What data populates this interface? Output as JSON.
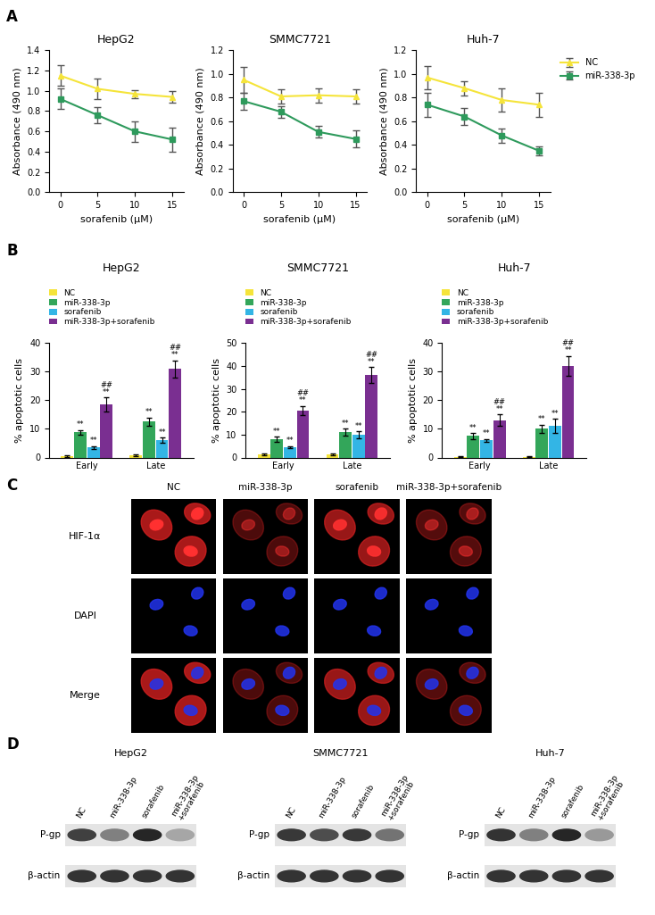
{
  "panel_labels": [
    "A",
    "B",
    "C",
    "D"
  ],
  "chart_data": [
    {
      "type": "line",
      "title": "HepG2",
      "x_label": "sorafenib (μM)",
      "y_label": "Absorbance (490 nm)",
      "x": [
        0,
        5,
        10,
        15
      ],
      "xlim": [
        -1.5,
        16.5
      ],
      "xticks": [
        0,
        5,
        10,
        15
      ],
      "ylim": [
        0,
        1.4
      ],
      "yticks": [
        {
          "value": 0,
          "label": "0.0"
        },
        {
          "value": 0.2,
          "label": "0.2"
        },
        {
          "value": 0.4,
          "label": "0.4"
        },
        {
          "value": 0.6,
          "label": "0.6"
        },
        {
          "value": 0.8,
          "label": "0.8"
        },
        {
          "value": 1.0,
          "label": "1.0"
        },
        {
          "value": 1.2,
          "label": "1.2"
        },
        {
          "value": 1.4,
          "label": "1.4"
        }
      ],
      "series": [
        {
          "color": "#f5e43a",
          "marker": "triangle",
          "values": [
            1.15,
            1.02,
            0.97,
            0.94
          ],
          "errors": [
            0.1,
            0.1,
            0.04,
            0.06
          ]
        },
        {
          "color": "#2e9a5c",
          "marker": "square",
          "values": [
            0.92,
            0.76,
            0.6,
            0.52
          ],
          "errors": [
            0.1,
            0.08,
            0.1,
            0.12
          ]
        }
      ]
    },
    {
      "type": "line",
      "title": "SMMC7721",
      "x_label": "sorafenib (μM)",
      "y_label": "Absorbance (490 nm)",
      "x": [
        0,
        5,
        10,
        15
      ],
      "xlim": [
        -1.5,
        16.5
      ],
      "xticks": [
        0,
        5,
        10,
        15
      ],
      "ylim": [
        0,
        1.2
      ],
      "yticks": [
        {
          "value": 0,
          "label": "0.0"
        },
        {
          "value": 0.2,
          "label": "0.2"
        },
        {
          "value": 0.4,
          "label": "0.4"
        },
        {
          "value": 0.6,
          "label": "0.6"
        },
        {
          "value": 0.8,
          "label": "0.8"
        },
        {
          "value": 1.0,
          "label": "1.0"
        },
        {
          "value": 1.2,
          "label": "1.2"
        }
      ],
      "series": [
        {
          "color": "#f5e43a",
          "marker": "triangle",
          "values": [
            0.95,
            0.81,
            0.82,
            0.81
          ],
          "errors": [
            0.11,
            0.06,
            0.06,
            0.06
          ]
        },
        {
          "color": "#2e9a5c",
          "marker": "square",
          "values": [
            0.77,
            0.68,
            0.51,
            0.45
          ],
          "errors": [
            0.07,
            0.05,
            0.05,
            0.07
          ]
        }
      ]
    },
    {
      "type": "line",
      "title": "Huh-7",
      "x_label": "sorafenib (μM)",
      "y_label": "Absorbance (490 nm)",
      "x": [
        0,
        5,
        10,
        15
      ],
      "xlim": [
        -1.5,
        16.5
      ],
      "xticks": [
        0,
        5,
        10,
        15
      ],
      "ylim": [
        0,
        1.2
      ],
      "yticks": [
        {
          "value": 0,
          "label": "0.0"
        },
        {
          "value": 0.2,
          "label": "0.2"
        },
        {
          "value": 0.4,
          "label": "0.4"
        },
        {
          "value": 0.6,
          "label": "0.6"
        },
        {
          "value": 0.8,
          "label": "0.8"
        },
        {
          "value": 1.0,
          "label": "1.0"
        },
        {
          "value": 1.2,
          "label": "1.2"
        }
      ],
      "legend": "right",
      "series": [
        {
          "name": "NC",
          "color": "#f5e43a",
          "marker": "triangle",
          "values": [
            0.97,
            0.88,
            0.78,
            0.74
          ],
          "errors": [
            0.1,
            0.06,
            0.1,
            0.1
          ]
        },
        {
          "name": "miR-338-3p",
          "color": "#2e9a5c",
          "marker": "square",
          "values": [
            0.74,
            0.64,
            0.48,
            0.35
          ],
          "errors": [
            0.1,
            0.07,
            0.06,
            0.04
          ]
        }
      ]
    },
    {
      "type": "bar",
      "title": "HepG2",
      "y_label": "% apoptotic cells",
      "categories": [
        "Early",
        "Late"
      ],
      "ylim": [
        0,
        40
      ],
      "yticks": [
        0,
        10,
        20,
        30,
        40
      ],
      "legend": "top",
      "series": [
        {
          "name": "NC",
          "color": "#f5e43a",
          "values": [
            0.5,
            0.8
          ],
          "errors": [
            0.2,
            0.2
          ]
        },
        {
          "name": "miR-338-3p",
          "color": "#33a65a",
          "values": [
            8.8,
            12.5
          ],
          "errors": [
            0.8,
            1.5
          ],
          "annotations": [
            [
              "**"
            ],
            [
              "**"
            ]
          ]
        },
        {
          "name": "sorafenib",
          "color": "#33b5e5",
          "values": [
            3.5,
            6
          ],
          "errors": [
            0.5,
            1
          ],
          "annotations": [
            [
              "**"
            ],
            [
              "**"
            ]
          ]
        },
        {
          "name": "miR-338-3p+sorafenib",
          "color": "#7a2f91",
          "values": [
            18.5,
            31
          ],
          "errors": [
            2.5,
            3
          ],
          "annotations": [
            [
              "##",
              "**"
            ],
            [
              "##",
              "**"
            ]
          ]
        }
      ]
    },
    {
      "type": "bar",
      "title": "SMMC7721",
      "y_label": "% apoptotic cells",
      "categories": [
        "Early",
        "Late"
      ],
      "ylim": [
        0,
        50
      ],
      "yticks": [
        0,
        10,
        20,
        30,
        40,
        50
      ],
      "legend": "top",
      "series": [
        {
          "name": "NC",
          "color": "#f5e43a",
          "values": [
            1.5,
            1.5
          ],
          "errors": [
            0.4,
            0.4
          ]
        },
        {
          "name": "miR-338-3p",
          "color": "#33a65a",
          "values": [
            8,
            11
          ],
          "errors": [
            1,
            1.5
          ],
          "annotations": [
            [
              "**"
            ],
            [
              "**"
            ]
          ]
        },
        {
          "name": "sorafenib",
          "color": "#33b5e5",
          "values": [
            4.5,
            10
          ],
          "errors": [
            0.5,
            1.5
          ],
          "annotations": [
            [
              "**"
            ],
            [
              "**"
            ]
          ]
        },
        {
          "name": "miR-338-3p+sorafenib",
          "color": "#7a2f91",
          "values": [
            20.5,
            36
          ],
          "errors": [
            2,
            3.5
          ],
          "annotations": [
            [
              "##",
              "**"
            ],
            [
              "##",
              "**"
            ]
          ]
        }
      ]
    },
    {
      "type": "bar",
      "title": "Huh-7",
      "y_label": "% apoptotic cells",
      "categories": [
        "Early",
        "Late"
      ],
      "ylim": [
        0,
        40
      ],
      "yticks": [
        0,
        10,
        20,
        30,
        40
      ],
      "legend": "top",
      "series": [
        {
          "name": "NC",
          "color": "#f5e43a",
          "values": [
            0.3,
            0.3
          ],
          "errors": [
            0.2,
            0.2
          ]
        },
        {
          "name": "miR-338-3p",
          "color": "#33a65a",
          "values": [
            7.5,
            10
          ],
          "errors": [
            1,
            1.5
          ],
          "annotations": [
            [
              "**"
            ],
            [
              "**"
            ]
          ]
        },
        {
          "name": "sorafenib",
          "color": "#33b5e5",
          "values": [
            6,
            11
          ],
          "errors": [
            0.5,
            2.5
          ],
          "annotations": [
            [
              "**"
            ],
            [
              "**"
            ]
          ]
        },
        {
          "name": "miR-338-3p+sorafenib",
          "color": "#7a2f91",
          "values": [
            13,
            32
          ],
          "errors": [
            2,
            3.5
          ],
          "annotations": [
            [
              "##",
              "**"
            ],
            [
              "##",
              "**"
            ]
          ]
        }
      ]
    }
  ],
  "immunofluorescence": {
    "columns": [
      "NC",
      "miR-338-3p",
      "sorafenib",
      "miR-338-3p+sorafenib"
    ],
    "rows": [
      "HIF-1α",
      "DAPI",
      "Merge"
    ]
  },
  "western_blot": {
    "panels": [
      "HepG2",
      "SMMC7721",
      "Huh-7"
    ],
    "lanes": [
      "NC",
      "miR-338-3p",
      "sorafenib",
      "miR-338-3p\n+sorafenib"
    ],
    "rows": [
      "P-gp",
      "β-actin"
    ]
  }
}
